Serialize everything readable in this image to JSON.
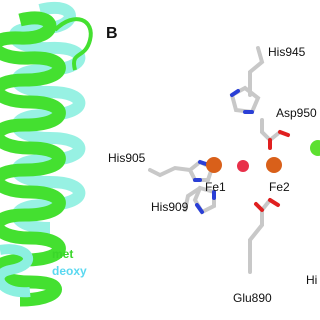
{
  "panel_label": "B",
  "legend": {
    "met": "met",
    "deoxy": "deoxy"
  },
  "residues": {
    "his945": "His945",
    "asp950": "Asp950",
    "his905": "His905",
    "his909": "His909",
    "glu890": "Glu890",
    "cut_right": "Hi"
  },
  "metals": {
    "fe1": "Fe1",
    "fe2": "Fe2"
  }
}
